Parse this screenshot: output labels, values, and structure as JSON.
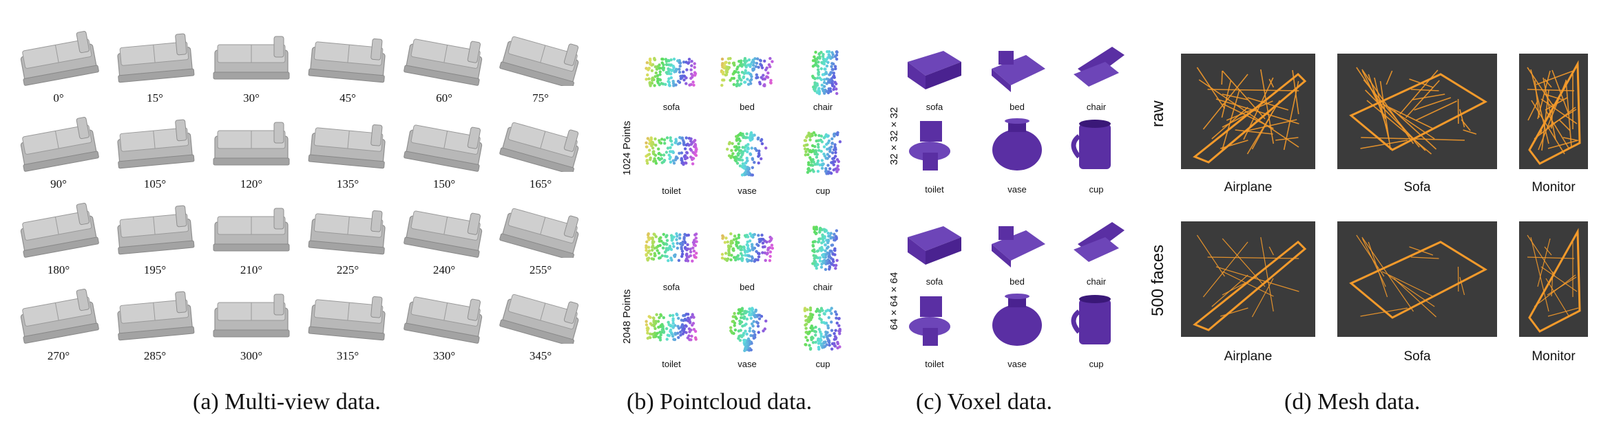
{
  "multiview": {
    "caption": "(a)  Multi-view data.",
    "angles": [
      "0°",
      "15°",
      "30°",
      "45°",
      "60°",
      "75°",
      "90°",
      "105°",
      "120°",
      "135°",
      "150°",
      "165°",
      "180°",
      "195°",
      "210°",
      "225°",
      "240°",
      "255°",
      "270°",
      "285°",
      "300°",
      "315°",
      "330°",
      "345°"
    ]
  },
  "pointcloud": {
    "caption": "(b)  Pointcloud data.",
    "row_labels": [
      "1024 Points",
      "2048 Points"
    ],
    "objects": [
      "sofa",
      "bed",
      "chair",
      "toilet",
      "vase",
      "cup"
    ]
  },
  "voxel": {
    "caption": "(c)  Voxel data.",
    "row_labels": [
      "32 × 32 × 32",
      "64 × 64 × 64"
    ],
    "objects": [
      "sofa",
      "bed",
      "chair",
      "toilet",
      "vase",
      "cup"
    ]
  },
  "mesh": {
    "caption": "(d)  Mesh data.",
    "row_labels": [
      "raw",
      "500 faces"
    ],
    "objects": [
      "Airplane",
      "Sofa",
      "Monitor"
    ]
  },
  "colors": {
    "bed_gray": "#b8b8b8",
    "voxel_purple": "#5a2fa3",
    "mesh_orange": "#f39a2b",
    "mesh_bg": "#3b3b3b"
  }
}
